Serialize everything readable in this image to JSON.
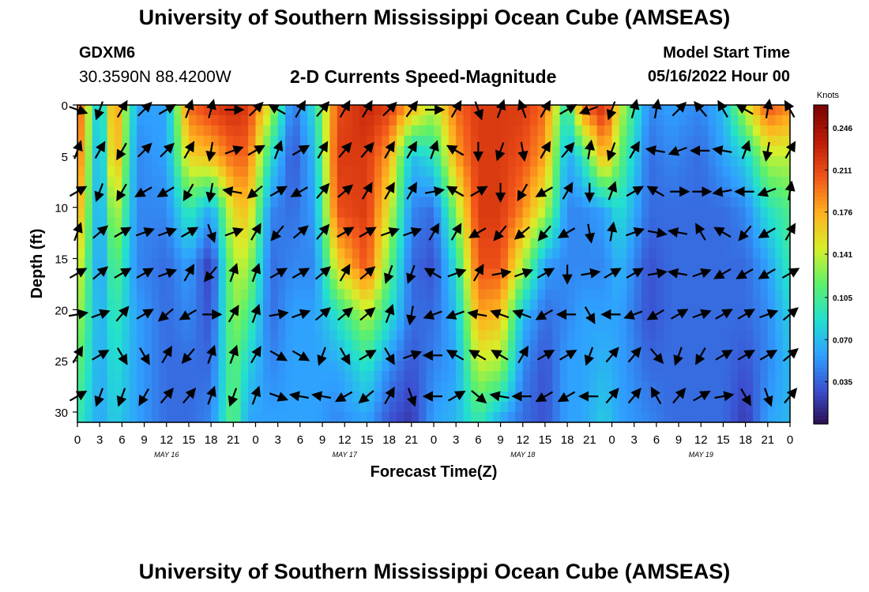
{
  "header": {
    "title": "University of Southern Mississippi Ocean Cube (AMSEAS)",
    "station_id": "GDXM6",
    "station_coords": "30.3590N  88.4200W",
    "plot_title": "2-D Currents Speed-Magnitude",
    "model_start_label": "Model Start Time",
    "model_start_value": "05/16/2022 Hour 00"
  },
  "footer": {
    "title": "University of Southern Mississippi Ocean Cube (AMSEAS)"
  },
  "colorbar": {
    "unit": "Knots",
    "ticks": [
      "0.246",
      "0.211",
      "0.176",
      "0.141",
      "0.105",
      "0.070",
      "0.035"
    ],
    "tick_values": [
      0.246,
      0.211,
      0.176,
      0.141,
      0.105,
      0.07,
      0.035
    ],
    "range": [
      0,
      0.265
    ],
    "colors": [
      "#2a0a4a",
      "#3b4fd0",
      "#2fa0ff",
      "#22e0d0",
      "#5df06a",
      "#d6f02a",
      "#ffb21e",
      "#f2561a",
      "#bf1c07",
      "#7a0403"
    ]
  },
  "chart_data": {
    "type": "heatmap",
    "title": "2-D Currents Speed-Magnitude",
    "xlabel": "Forecast Time(Z)",
    "ylabel": "Depth (ft)",
    "x_unit": "hours since 05/16/2022 00Z",
    "xlim": [
      0,
      96
    ],
    "ylim": [
      31,
      0
    ],
    "x_ticks": [
      0,
      3,
      6,
      9,
      12,
      15,
      18,
      21,
      24,
      27,
      30,
      33,
      36,
      39,
      42,
      45,
      48,
      51,
      54,
      57,
      60,
      63,
      66,
      69,
      72,
      75,
      78,
      81,
      84,
      87,
      90,
      93,
      96
    ],
    "x_tick_labels": [
      "0",
      "3",
      "6",
      "9",
      "12",
      "15",
      "18",
      "21",
      "0",
      "3",
      "6",
      "9",
      "12",
      "15",
      "18",
      "21",
      "0",
      "3",
      "6",
      "9",
      "12",
      "15",
      "18",
      "21",
      "0",
      "3",
      "6",
      "9",
      "12",
      "15",
      "18",
      "21",
      "0"
    ],
    "y_ticks": [
      0,
      5,
      10,
      15,
      20,
      25,
      30
    ],
    "day_labels": [
      {
        "text": "MAY 16",
        "x": 12
      },
      {
        "text": "MAY 17",
        "x": 36
      },
      {
        "text": "MAY 18",
        "x": 60
      },
      {
        "text": "MAY 19",
        "x": 84
      }
    ],
    "speed_profiles": [
      {
        "x": 0,
        "values": [
          0.22,
          0.21,
          0.19,
          0.16,
          0.14,
          0.12,
          0.1
        ]
      },
      {
        "x": 3,
        "values": [
          0.06,
          0.05,
          0.05,
          0.05,
          0.06,
          0.06,
          0.06
        ]
      },
      {
        "x": 5,
        "values": [
          0.2,
          0.19,
          0.15,
          0.12,
          0.1,
          0.09,
          0.08
        ]
      },
      {
        "x": 8,
        "values": [
          0.06,
          0.05,
          0.05,
          0.05,
          0.06,
          0.06,
          0.06
        ]
      },
      {
        "x": 12,
        "values": [
          0.06,
          0.06,
          0.05,
          0.04,
          0.04,
          0.04,
          0.04
        ]
      },
      {
        "x": 15,
        "values": [
          0.2,
          0.16,
          0.1,
          0.06,
          0.05,
          0.04,
          0.04
        ]
      },
      {
        "x": 18,
        "values": [
          0.22,
          0.17,
          0.06,
          0.02,
          0.03,
          0.04,
          0.05
        ]
      },
      {
        "x": 21,
        "values": [
          0.23,
          0.2,
          0.16,
          0.14,
          0.13,
          0.12,
          0.12
        ]
      },
      {
        "x": 23,
        "values": [
          0.22,
          0.2,
          0.17,
          0.14,
          0.11,
          0.08,
          0.06
        ]
      },
      {
        "x": 26,
        "values": [
          0.15,
          0.09,
          0.05,
          0.04,
          0.04,
          0.05,
          0.06
        ]
      },
      {
        "x": 29,
        "values": [
          0.04,
          0.03,
          0.04,
          0.05,
          0.06,
          0.06,
          0.06
        ]
      },
      {
        "x": 32,
        "values": [
          0.09,
          0.07,
          0.06,
          0.05,
          0.06,
          0.06,
          0.06
        ]
      },
      {
        "x": 35,
        "values": [
          0.21,
          0.22,
          0.21,
          0.16,
          0.09,
          0.06,
          0.05
        ]
      },
      {
        "x": 39,
        "values": [
          0.23,
          0.22,
          0.22,
          0.21,
          0.14,
          0.09,
          0.06
        ]
      },
      {
        "x": 42,
        "values": [
          0.22,
          0.18,
          0.15,
          0.12,
          0.09,
          0.05,
          0.03
        ]
      },
      {
        "x": 45,
        "values": [
          0.18,
          0.07,
          0.05,
          0.04,
          0.04,
          0.03,
          0.02
        ]
      },
      {
        "x": 48,
        "values": [
          0.14,
          0.09,
          0.04,
          0.03,
          0.04,
          0.05,
          0.06
        ]
      },
      {
        "x": 51,
        "values": [
          0.2,
          0.18,
          0.13,
          0.09,
          0.07,
          0.06,
          0.07
        ]
      },
      {
        "x": 54,
        "values": [
          0.22,
          0.22,
          0.22,
          0.21,
          0.18,
          0.14,
          0.1
        ]
      },
      {
        "x": 57,
        "values": [
          0.22,
          0.22,
          0.22,
          0.21,
          0.17,
          0.13,
          0.06
        ]
      },
      {
        "x": 60,
        "values": [
          0.22,
          0.21,
          0.19,
          0.14,
          0.07,
          0.05,
          0.04
        ]
      },
      {
        "x": 63,
        "values": [
          0.2,
          0.18,
          0.14,
          0.06,
          0.04,
          0.03,
          0.03
        ]
      },
      {
        "x": 66,
        "values": [
          0.09,
          0.06,
          0.05,
          0.05,
          0.05,
          0.06,
          0.06
        ]
      },
      {
        "x": 68,
        "values": [
          0.2,
          0.09,
          0.05,
          0.05,
          0.06,
          0.06,
          0.06
        ]
      },
      {
        "x": 71,
        "values": [
          0.23,
          0.18,
          0.06,
          0.05,
          0.06,
          0.07,
          0.08
        ]
      },
      {
        "x": 73,
        "values": [
          0.15,
          0.12,
          0.09,
          0.07,
          0.06,
          0.06,
          0.06
        ]
      },
      {
        "x": 77,
        "values": [
          0.05,
          0.04,
          0.04,
          0.03,
          0.03,
          0.04,
          0.05
        ]
      },
      {
        "x": 80,
        "values": [
          0.06,
          0.05,
          0.04,
          0.04,
          0.04,
          0.04,
          0.04
        ]
      },
      {
        "x": 84,
        "values": [
          0.05,
          0.04,
          0.04,
          0.04,
          0.04,
          0.04,
          0.04
        ]
      },
      {
        "x": 87,
        "values": [
          0.07,
          0.06,
          0.04,
          0.04,
          0.04,
          0.04,
          0.04
        ]
      },
      {
        "x": 90,
        "values": [
          0.15,
          0.08,
          0.05,
          0.04,
          0.04,
          0.03,
          0.02
        ]
      },
      {
        "x": 93,
        "values": [
          0.21,
          0.14,
          0.09,
          0.06,
          0.05,
          0.05,
          0.06
        ]
      },
      {
        "x": 96,
        "values": [
          0.19,
          0.14,
          0.11,
          0.1,
          0.08,
          0.07,
          0.07
        ]
      }
    ],
    "vector_depths": [
      0,
      4,
      8,
      12,
      16,
      20,
      24,
      28
    ],
    "vector_times": [
      0,
      3,
      6,
      9,
      12,
      15,
      18,
      21,
      24,
      27,
      30,
      33,
      36,
      39,
      42,
      45,
      48,
      51,
      54,
      57,
      60,
      63,
      66,
      69,
      72,
      75,
      78,
      81,
      84,
      87,
      90,
      93,
      96
    ],
    "vector_directions_deg": [
      [
        110,
        200,
        30,
        45,
        60,
        20,
        15,
        90,
        45,
        300,
        30,
        40,
        30,
        30,
        45,
        35,
        90,
        30,
        160,
        20,
        340,
        30,
        60,
        250,
        200,
        15,
        10,
        45,
        320,
        330,
        300,
        10,
        330
      ],
      [
        20,
        30,
        210,
        45,
        45,
        30,
        190,
        70,
        60,
        20,
        60,
        30,
        40,
        40,
        30,
        30,
        20,
        300,
        180,
        200,
        170,
        30,
        40,
        10,
        200,
        30,
        280,
        250,
        270,
        280,
        20,
        190,
        30
      ],
      [
        60,
        200,
        210,
        240,
        240,
        210,
        190,
        280,
        230,
        60,
        240,
        40,
        50,
        30,
        30,
        30,
        80,
        300,
        60,
        180,
        210,
        240,
        30,
        180,
        20,
        60,
        300,
        90,
        90,
        260,
        270,
        250,
        10
      ],
      [
        20,
        50,
        60,
        70,
        70,
        60,
        160,
        70,
        30,
        220,
        50,
        40,
        60,
        60,
        70,
        70,
        30,
        30,
        240,
        220,
        230,
        220,
        240,
        170,
        10,
        70,
        100,
        280,
        330,
        300,
        220,
        240,
        30
      ],
      [
        60,
        50,
        60,
        60,
        70,
        30,
        220,
        20,
        20,
        60,
        60,
        50,
        30,
        50,
        200,
        200,
        300,
        70,
        30,
        80,
        70,
        60,
        180,
        80,
        60,
        60,
        80,
        280,
        70,
        240,
        240,
        240,
        60
      ],
      [
        80,
        70,
        40,
        60,
        230,
        240,
        90,
        30,
        20,
        80,
        70,
        50,
        50,
        50,
        20,
        190,
        250,
        250,
        280,
        290,
        290,
        240,
        270,
        150,
        270,
        250,
        240,
        60,
        70,
        60,
        60,
        70,
        50
      ],
      [
        30,
        60,
        150,
        150,
        30,
        220,
        20,
        20,
        30,
        120,
        120,
        200,
        150,
        60,
        150,
        70,
        270,
        300,
        300,
        300,
        30,
        60,
        60,
        200,
        40,
        40,
        140,
        200,
        210,
        60,
        60,
        60,
        50
      ],
      [
        60,
        200,
        200,
        210,
        40,
        40,
        20,
        200,
        20,
        110,
        280,
        280,
        240,
        230,
        30,
        160,
        270,
        60,
        130,
        280,
        270,
        240,
        240,
        270,
        40,
        40,
        330,
        40,
        60,
        80,
        150,
        160,
        40
      ]
    ]
  }
}
